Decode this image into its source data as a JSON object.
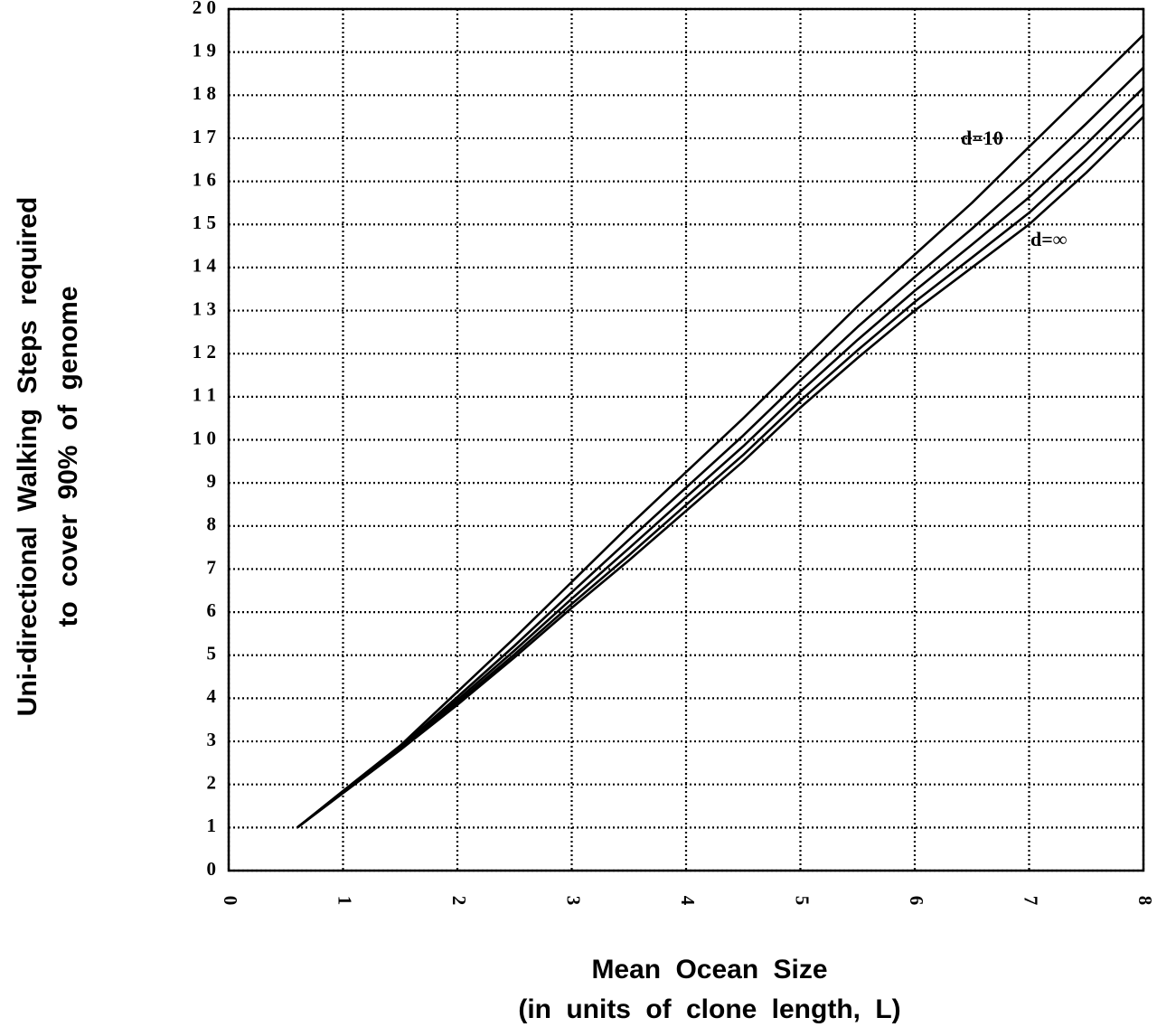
{
  "chart_data": {
    "type": "line",
    "x_label": [
      "Mean Ocean Size",
      "(in units of clone length, L)"
    ],
    "y_label": [
      "Uni-directional Walking Steps required",
      "to cover 90% of genome"
    ],
    "x": [
      0.6,
      1,
      1.5,
      2,
      2.5,
      3,
      3.5,
      4,
      4.5,
      5,
      5.5,
      6,
      6.5,
      7,
      7.5,
      8
    ],
    "series": [
      {
        "color": "#000000",
        "values": [
          1,
          1.85,
          2.9,
          4.15,
          5.4,
          6.7,
          8.0,
          9.25,
          10.5,
          11.8,
          13.1,
          14.3,
          15.5,
          16.8,
          18.1,
          19.4
        ]
      },
      {
        "color": "#000000",
        "values": [
          1,
          1.83,
          2.86,
          4.03,
          5.22,
          6.46,
          7.68,
          8.89,
          10.1,
          11.38,
          12.62,
          13.78,
          14.9,
          16.08,
          17.34,
          18.64
        ]
      },
      {
        "color": "#000000",
        "values": [
          1,
          1.82,
          2.84,
          3.96,
          5.11,
          6.31,
          7.48,
          8.67,
          9.85,
          11.12,
          12.32,
          13.46,
          14.53,
          15.63,
          16.87,
          18.17
        ]
      },
      {
        "color": "#000000",
        "values": [
          1,
          1.81,
          2.82,
          3.9,
          5.02,
          6.19,
          7.32,
          8.49,
          9.65,
          10.91,
          12.08,
          13.2,
          14.23,
          15.27,
          16.49,
          17.79
        ]
      },
      {
        "color": "#000000",
        "values": [
          1,
          1.8,
          2.8,
          3.85,
          4.95,
          6.1,
          7.2,
          8.35,
          9.5,
          10.75,
          11.9,
          13.0,
          14.0,
          15.0,
          16.2,
          17.5
        ]
      }
    ],
    "annotations": [
      "d=10",
      "d=∞"
    ],
    "xlim": [
      0,
      8
    ],
    "xticks": [
      0,
      1,
      2,
      3,
      4,
      5,
      6,
      7,
      8
    ],
    "ylim": [
      0,
      20
    ],
    "yticks": [
      0,
      1,
      2,
      3,
      4,
      5,
      6,
      7,
      8,
      9,
      {
        "value": 10,
        "label": "1 0"
      },
      {
        "value": 11,
        "label": "1 1"
      },
      {
        "value": 12,
        "label": "1 2"
      },
      {
        "value": 13,
        "label": "1 3"
      },
      {
        "value": 14,
        "label": "1 4"
      },
      {
        "value": 15,
        "label": "1 5"
      },
      {
        "value": 16,
        "label": "1 6"
      },
      {
        "value": 17,
        "label": "1 7"
      },
      {
        "value": 18,
        "label": "1 8"
      },
      {
        "value": 19,
        "label": "1 9"
      },
      {
        "value": 20,
        "label": "2 0"
      }
    ],
    "grid": true
  }
}
